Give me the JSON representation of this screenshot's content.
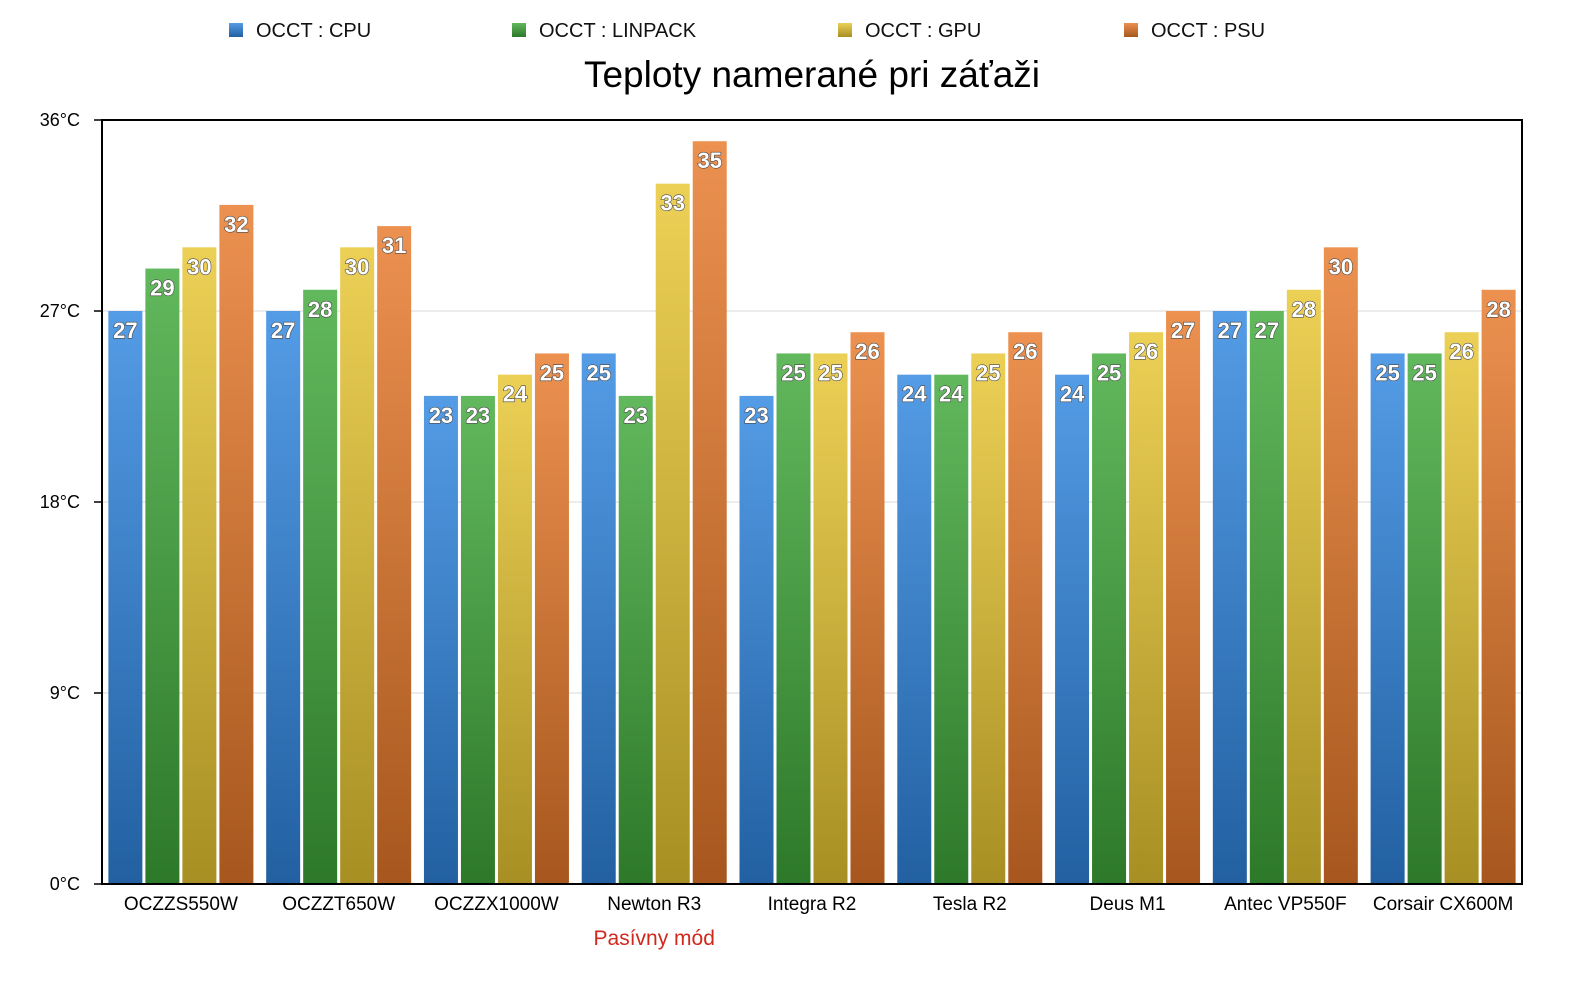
{
  "chart_data": {
    "type": "bar",
    "title": "Teploty namerané pri záťaži",
    "categories": [
      "OCZZS550W",
      "OCZZT650W",
      "OCZZX1000W",
      "Newton R3",
      "Integra R2",
      "Tesla R2",
      "Deus M1",
      "Antec VP550F",
      "Corsair CX600M"
    ],
    "series": [
      {
        "name": "OCCT : CPU",
        "values": [
          27,
          27,
          23,
          25,
          23,
          24,
          24,
          27,
          25
        ],
        "color": "#2f86e0"
      },
      {
        "name": "OCCT : LINPACK",
        "values": [
          29,
          28,
          23,
          23,
          25,
          24,
          25,
          27,
          25
        ],
        "color": "#3fa83a"
      },
      {
        "name": "OCCT : GPU",
        "values": [
          30,
          30,
          24,
          33,
          25,
          25,
          26,
          28,
          26
        ],
        "color": "#e8c631"
      },
      {
        "name": "OCCT : PSU",
        "values": [
          32,
          31,
          25,
          35,
          26,
          26,
          27,
          30,
          28
        ],
        "color": "#e8792a"
      }
    ],
    "ylim": [
      0,
      36
    ],
    "yticks": [
      "0°C",
      "9°C",
      "18°C",
      "27°C",
      "36°C"
    ],
    "ytick_values": [
      0,
      9,
      18,
      27,
      36
    ],
    "grid": true,
    "legend_position": "top",
    "annotation": "Pasívny mód",
    "annotation_category": "Newton R3"
  }
}
